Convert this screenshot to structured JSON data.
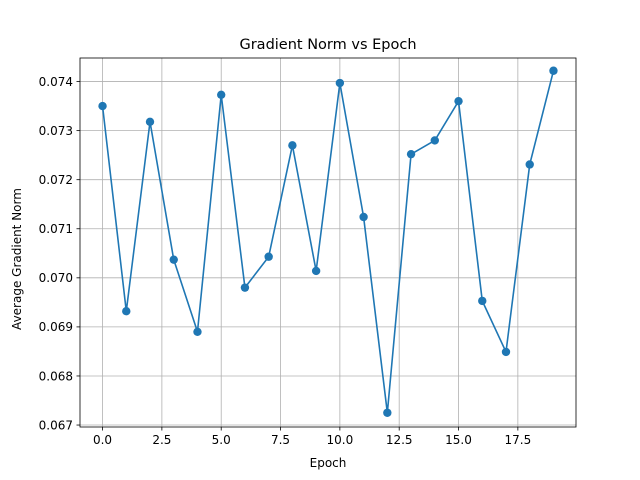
{
  "chart_data": {
    "type": "line",
    "title": "Gradient Norm vs Epoch",
    "xlabel": "Epoch",
    "ylabel": "Average Gradient Norm",
    "xlim": [
      -0.95,
      19.95
    ],
    "ylim": [
      0.06696,
      0.07448
    ],
    "xticks": [
      0.0,
      2.5,
      5.0,
      7.5,
      10.0,
      12.5,
      15.0,
      17.5
    ],
    "xtick_labels": [
      "0.0",
      "2.5",
      "5.0",
      "7.5",
      "10.0",
      "12.5",
      "15.0",
      "17.5"
    ],
    "yticks": [
      0.067,
      0.068,
      0.069,
      0.07,
      0.071,
      0.072,
      0.073,
      0.074
    ],
    "ytick_labels": [
      "0.067",
      "0.068",
      "0.069",
      "0.070",
      "0.071",
      "0.072",
      "0.073",
      "0.074"
    ],
    "grid": true,
    "series": [
      {
        "color": "#1f77b4",
        "marker": "circle",
        "x": [
          0,
          1,
          2,
          3,
          4,
          5,
          6,
          7,
          8,
          9,
          10,
          11,
          12,
          13,
          14,
          15,
          16,
          17,
          18,
          19
        ],
        "y": [
          0.0735,
          0.06932,
          0.07318,
          0.07037,
          0.0689,
          0.07373,
          0.0698,
          0.07043,
          0.0727,
          0.07014,
          0.07397,
          0.07124,
          0.06725,
          0.07252,
          0.0728,
          0.0736,
          0.06953,
          0.06849,
          0.07231,
          0.07422
        ]
      }
    ]
  }
}
